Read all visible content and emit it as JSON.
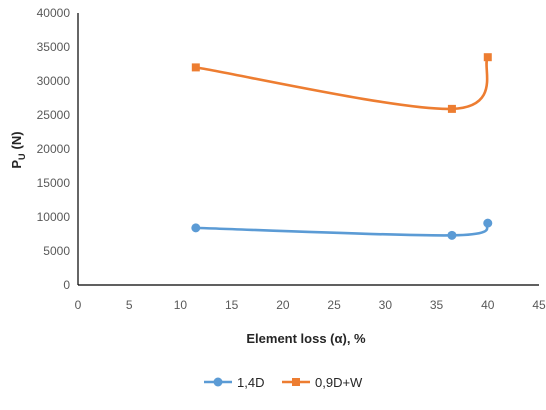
{
  "chart_data": {
    "type": "line",
    "title": "",
    "xlabel": "Element loss (α), %",
    "ylabel": "P",
    "ylabel_sub": "U",
    "ylabel_unit": "(N)",
    "xlim": [
      0,
      45
    ],
    "ylim": [
      0,
      40000
    ],
    "x_ticks": [
      "0",
      "5",
      "10",
      "15",
      "20",
      "25",
      "30",
      "35",
      "40",
      "45"
    ],
    "y_ticks": [
      "0",
      "5000",
      "10000",
      "15000",
      "20000",
      "25000",
      "30000",
      "35000",
      "40000"
    ],
    "grid": false,
    "smooth": true,
    "legend_position": "bottom",
    "series": [
      {
        "name": "1,4D",
        "color": "#5B9BD5",
        "marker": "circle",
        "x": [
          11.5,
          36.5,
          40
        ],
        "y": [
          8400,
          7300,
          9100
        ]
      },
      {
        "name": "0,9D+W",
        "color": "#ED7D31",
        "marker": "square",
        "x": [
          11.5,
          36.5,
          40
        ],
        "y": [
          32000,
          25900,
          33500
        ]
      }
    ]
  }
}
